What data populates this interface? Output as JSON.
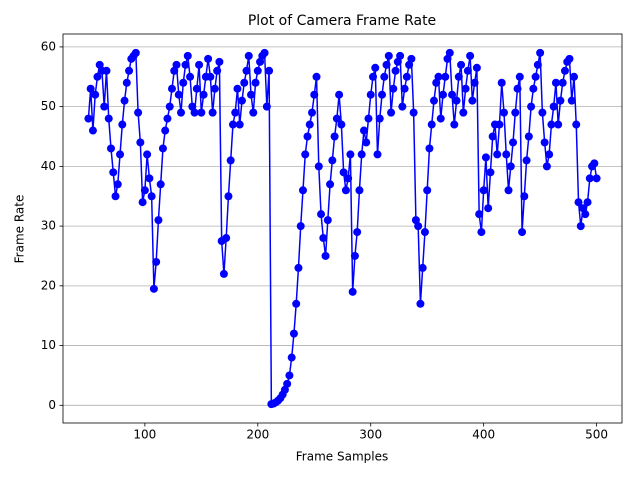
{
  "chart_data": {
    "type": "line",
    "title": "Plot of Camera Frame Rate",
    "xlabel": "Frame Samples",
    "ylabel": "Frame Rate",
    "xlim": [
      27.5,
      522.5
    ],
    "ylim": [
      -2.96,
      62.16
    ],
    "xticks": [
      100,
      200,
      300,
      400,
      500
    ],
    "yticks": [
      0,
      10,
      20,
      30,
      40,
      50,
      60
    ],
    "grid": true,
    "x": [
      50,
      52,
      54,
      56,
      58,
      60,
      62,
      64,
      66,
      68,
      70,
      72,
      74,
      76,
      78,
      80,
      82,
      84,
      86,
      88,
      90,
      92,
      94,
      96,
      98,
      100,
      102,
      104,
      106,
      108,
      110,
      112,
      114,
      116,
      118,
      120,
      122,
      124,
      126,
      128,
      130,
      132,
      134,
      136,
      138,
      140,
      142,
      144,
      146,
      148,
      150,
      152,
      154,
      156,
      158,
      160,
      162,
      164,
      166,
      168,
      170,
      172,
      174,
      176,
      178,
      180,
      182,
      184,
      186,
      188,
      190,
      192,
      194,
      196,
      198,
      200,
      202,
      204,
      206,
      208,
      210,
      212,
      214,
      216,
      218,
      220,
      222,
      224,
      226,
      228,
      230,
      232,
      234,
      236,
      238,
      240,
      242,
      244,
      246,
      248,
      250,
      252,
      254,
      256,
      258,
      260,
      262,
      264,
      266,
      268,
      270,
      272,
      274,
      276,
      278,
      280,
      282,
      284,
      286,
      288,
      290,
      292,
      294,
      296,
      298,
      300,
      302,
      304,
      306,
      308,
      310,
      312,
      314,
      316,
      318,
      320,
      322,
      324,
      326,
      328,
      330,
      332,
      334,
      336,
      338,
      340,
      342,
      344,
      346,
      348,
      350,
      352,
      354,
      356,
      358,
      360,
      362,
      364,
      366,
      368,
      370,
      372,
      374,
      376,
      378,
      380,
      382,
      384,
      386,
      388,
      390,
      392,
      394,
      396,
      398,
      400,
      402,
      404,
      406,
      408,
      410,
      412,
      414,
      416,
      418,
      420,
      422,
      424,
      426,
      428,
      430,
      432,
      434,
      436,
      438,
      440,
      442,
      444,
      446,
      448,
      450,
      452,
      454,
      456,
      458,
      460,
      462,
      464,
      466,
      468,
      470,
      472,
      474,
      476,
      478,
      480,
      482,
      484,
      486,
      488,
      490,
      492,
      494,
      496,
      498,
      500
    ],
    "series": [
      {
        "color": "#0000ff",
        "values": [
          48,
          53,
          46,
          52,
          55,
          57,
          56,
          50,
          56,
          48,
          43,
          39,
          35,
          37,
          42,
          47,
          51,
          54,
          56,
          58,
          58.5,
          59,
          49,
          44,
          34,
          36,
          42,
          38,
          35,
          19.5,
          24,
          31,
          37,
          43,
          46,
          48,
          50,
          53,
          56,
          57,
          52,
          49,
          54,
          57,
          58.5,
          55,
          50,
          49,
          53,
          57,
          49,
          52,
          55,
          58,
          55,
          49,
          53,
          56,
          57.5,
          27.5,
          22,
          28,
          35,
          41,
          47,
          49,
          53,
          47,
          51,
          54,
          56,
          58.5,
          52,
          49,
          54,
          56,
          57.5,
          58.5,
          59,
          50,
          56,
          0.2,
          0.3,
          0.5,
          0.8,
          1.2,
          1.8,
          2.6,
          3.6,
          5,
          8,
          12,
          17,
          23,
          30,
          36,
          42,
          45,
          47,
          49,
          52,
          55,
          40,
          32,
          28,
          25,
          31,
          37,
          41,
          45,
          48,
          52,
          47,
          39,
          36,
          38,
          42,
          19,
          25,
          29,
          36,
          42,
          46,
          44,
          48,
          52,
          55,
          56.5,
          42,
          48,
          52,
          55,
          57,
          58.5,
          49,
          53,
          56,
          57.5,
          58.5,
          50,
          53,
          55,
          57,
          58,
          49,
          31,
          30,
          17,
          23,
          29,
          36,
          43,
          47,
          51,
          54,
          55,
          48,
          52,
          55,
          58,
          59,
          52,
          47,
          51,
          55,
          57,
          49,
          53,
          56,
          58.5,
          51,
          54,
          56.5,
          32,
          29,
          36,
          41.5,
          33,
          39,
          45,
          47,
          42,
          47,
          54,
          49,
          42,
          36,
          40,
          44,
          49,
          53,
          55,
          29,
          35,
          41,
          45,
          50,
          53,
          55,
          57,
          59,
          49,
          44,
          40,
          42,
          47,
          50,
          54,
          47,
          51,
          54,
          56,
          57.5,
          58,
          51,
          55,
          47,
          34,
          30,
          33,
          32,
          34,
          38,
          40,
          40.5,
          38
        ]
      }
    ]
  }
}
